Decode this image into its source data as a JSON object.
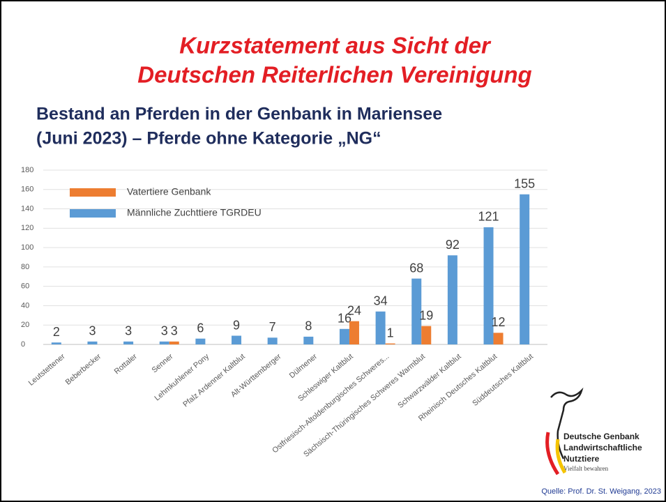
{
  "title_lines": [
    "Kurzstatement aus Sicht der",
    "Deutschen Reiterlichen Vereinigung"
  ],
  "subtitle_lines": [
    "Bestand an Pferden in der Genbank in Mariensee",
    "(Juni 2023) – Pferde ohne Kategorie „NG“"
  ],
  "chart_data": {
    "type": "bar",
    "categories": [
      "Leutstettener",
      "Beberbecker",
      "Rottaler",
      "Senner",
      "Lehmkuhlener Pony",
      "Pfalz Ardenner Kaltblut",
      "Alt-Württemberger",
      "Dülmener",
      "Schleswiger Kaltblut",
      "Ostfriesisch-Altoldenburgisches Schweres...",
      "Sächsisch-Thüringisches Schweres Warmblut",
      "Schwarzwälder Kaltblut",
      "Rheinisch Deutsches Kaltblut",
      "Süddeutsches Kaltblut"
    ],
    "series": [
      {
        "name": "Männliche Zuchttiere TGRDEU",
        "color": "#5b9bd5",
        "values": [
          2,
          3,
          3,
          3,
          6,
          9,
          7,
          8,
          16,
          34,
          68,
          92,
          121,
          155
        ]
      },
      {
        "name": "Vatertiere Genbank",
        "color": "#ed7d31",
        "values": [
          null,
          null,
          null,
          3,
          null,
          null,
          null,
          null,
          24,
          1,
          19,
          null,
          12,
          null
        ]
      }
    ],
    "ylim": [
      0,
      180
    ],
    "yticks": [
      0,
      20,
      40,
      60,
      80,
      100,
      120,
      140,
      160,
      180
    ],
    "grid": true,
    "legend": "top-left"
  },
  "logo": {
    "lines": [
      "Deutsche Genbank",
      "Landwirtschaftliche",
      "Nutztiere"
    ],
    "tagline": "Vielfalt bewahren"
  },
  "source": "Quelle: Prof. Dr. St. Weigang, 2023"
}
